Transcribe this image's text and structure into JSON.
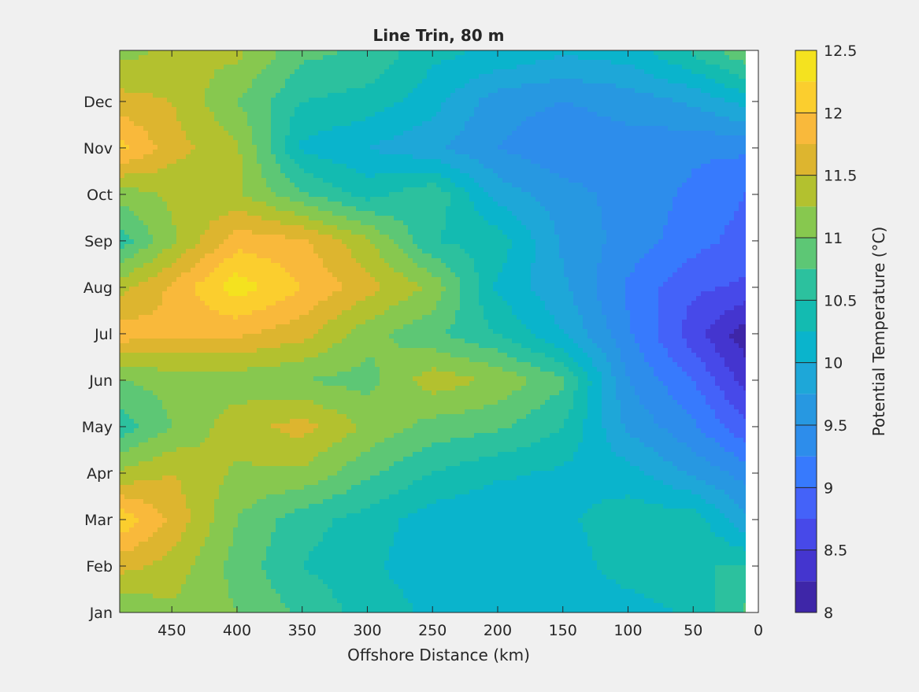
{
  "chart_data": {
    "type": "heatmap",
    "subtype": "filled-contour",
    "title": "Line Trin, 80 m",
    "xlabel": "Offshore Distance (km)",
    "ylabel": "",
    "x_direction": "reversed",
    "xlim": [
      0,
      490
    ],
    "x_ticks": [
      450,
      400,
      350,
      300,
      250,
      200,
      150,
      100,
      50,
      0
    ],
    "y_ticks": [
      "Jan",
      "Feb",
      "Mar",
      "Apr",
      "May",
      "Jun",
      "Jul",
      "Aug",
      "Sep",
      "Oct",
      "Nov",
      "Dec"
    ],
    "colorbar": {
      "label": "Potential Temperature (°C)",
      "range": [
        8,
        12.5
      ],
      "ticks": [
        8,
        8.5,
        9,
        9.5,
        10,
        10.5,
        11,
        11.5,
        12,
        12.5
      ],
      "levels": [
        8,
        8.25,
        8.5,
        8.75,
        9,
        9.25,
        9.5,
        9.75,
        10,
        10.25,
        10.5,
        10.75,
        11,
        11.25,
        11.5,
        11.75,
        12,
        12.25,
        12.5
      ],
      "colors": [
        "#3e26a8",
        "#4435cf",
        "#4749e9",
        "#4462f9",
        "#377afd",
        "#2d8deb",
        "#2798e1",
        "#1ea7d8",
        "#0ab4cc",
        "#13bbb1",
        "#2cc19e",
        "#5dc775",
        "#87c84f",
        "#b3c12f",
        "#ddb52f",
        "#f9b93b",
        "#fbce2e",
        "#f4e21f"
      ]
    },
    "x_km": [
      490,
      450,
      400,
      350,
      300,
      250,
      200,
      150,
      100,
      50,
      10
    ],
    "y_months": [
      "Jan",
      "Feb",
      "Mar",
      "Apr",
      "May",
      "Jun",
      "Jul",
      "Aug",
      "Sep",
      "Oct",
      "Nov",
      "Dec",
      "Jan+"
    ],
    "z": [
      [
        11.0,
        11.2,
        11.0,
        10.7,
        10.4,
        10.2,
        10.1,
        10.0,
        10.1,
        10.3,
        10.8
      ],
      [
        11.6,
        11.4,
        10.9,
        10.5,
        10.3,
        10.1,
        10.1,
        10.1,
        10.4,
        10.5,
        10.5
      ],
      [
        12.2,
        11.7,
        11.0,
        10.6,
        10.4,
        10.1,
        10.0,
        10.2,
        10.4,
        10.4,
        9.8
      ],
      [
        11.3,
        11.5,
        11.2,
        11.2,
        10.8,
        10.5,
        10.3,
        10.2,
        10.1,
        9.7,
        9.4
      ],
      [
        10.6,
        11.0,
        11.4,
        11.6,
        11.2,
        10.9,
        10.8,
        10.5,
        9.7,
        9.3,
        8.8
      ],
      [
        11.0,
        11.1,
        11.1,
        11.0,
        10.9,
        11.4,
        11.2,
        10.8,
        9.5,
        9.0,
        8.4
      ],
      [
        11.9,
        11.8,
        11.8,
        11.6,
        11.1,
        10.8,
        10.5,
        10.0,
        9.3,
        8.6,
        8.1
      ],
      [
        11.4,
        11.8,
        12.4,
        12.0,
        11.6,
        11.2,
        10.2,
        9.8,
        9.2,
        8.8,
        8.7
      ],
      [
        10.6,
        11.2,
        11.9,
        11.8,
        11.3,
        10.5,
        10.4,
        9.7,
        9.4,
        9.1,
        8.9
      ],
      [
        11.1,
        11.3,
        11.3,
        10.8,
        10.4,
        10.7,
        9.9,
        9.6,
        9.4,
        9.2,
        9.0
      ],
      [
        12.1,
        11.6,
        11.3,
        10.2,
        10.0,
        9.8,
        9.5,
        9.3,
        9.4,
        9.3,
        9.3
      ],
      [
        11.6,
        11.5,
        11.0,
        10.5,
        10.4,
        10.1,
        9.6,
        9.5,
        9.6,
        9.8,
        10.1
      ],
      [
        11.2,
        11.3,
        11.3,
        10.8,
        10.7,
        10.3,
        10.2,
        10.0,
        10.1,
        10.5,
        10.9
      ]
    ]
  }
}
